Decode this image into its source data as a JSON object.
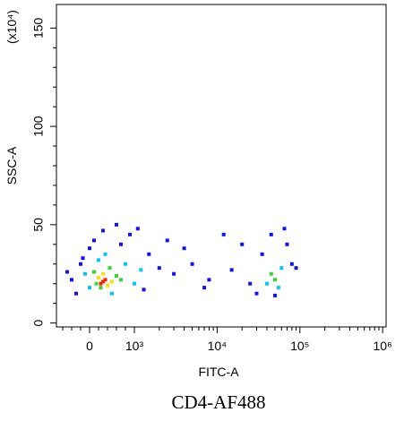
{
  "chart_data": {
    "type": "scatter",
    "title": "CD4-AF488",
    "x_label": "FITC-A",
    "y_label": "SSC-A",
    "y_multiplier": "(x10⁴)",
    "xscale": "biexponential",
    "linthresh": 1000,
    "xlim": [
      -740,
      1100000
    ],
    "xticks": [
      0,
      {
        "value": 1000,
        "label": "10³"
      },
      {
        "value": 10000,
        "label": "10⁴"
      },
      {
        "value": 100000,
        "label": "10⁵"
      },
      {
        "value": 1000000,
        "label": "10⁶"
      }
    ],
    "ylim": [
      -2,
      162
    ],
    "yticks": [
      0,
      50,
      100,
      150
    ],
    "series": [
      {
        "color": "#1010ff",
        "x": [
          -400,
          -200,
          -300,
          0,
          100,
          900,
          1500,
          2000,
          3000,
          1100,
          600,
          300,
          -150,
          5000,
          8000,
          12000,
          20000,
          7000,
          15000,
          30000,
          35000,
          70000,
          80000,
          65000,
          90000,
          25000,
          4000,
          2500,
          50000,
          45000,
          1300,
          700,
          -500
        ],
        "values": [
          22,
          30,
          15,
          38,
          42,
          45,
          35,
          28,
          25,
          48,
          50,
          47,
          33,
          30,
          22,
          45,
          40,
          18,
          27,
          15,
          35,
          40,
          30,
          48,
          28,
          20,
          38,
          42,
          14,
          45,
          17,
          40,
          26
        ]
      },
      {
        "color": "#00c8ff",
        "x": [
          0,
          800,
          200,
          500,
          1000,
          -100,
          350,
          40000,
          60000,
          55000,
          1200
        ],
        "values": [
          18,
          30,
          32,
          15,
          20,
          25,
          35,
          20,
          28,
          18,
          27
        ]
      },
      {
        "color": "#30d830",
        "x": [
          100,
          600,
          250,
          450,
          700,
          150,
          50000,
          45000
        ],
        "values": [
          26,
          24,
          18,
          28,
          22,
          20,
          22,
          25
        ]
      },
      {
        "color": "#ffe000",
        "x": [
          200,
          400,
          300,
          500
        ],
        "values": [
          23,
          19,
          25,
          21
        ]
      },
      {
        "color": "#ff2000",
        "x": [
          300,
          250,
          350
        ],
        "values": [
          21,
          20,
          22
        ]
      }
    ]
  }
}
